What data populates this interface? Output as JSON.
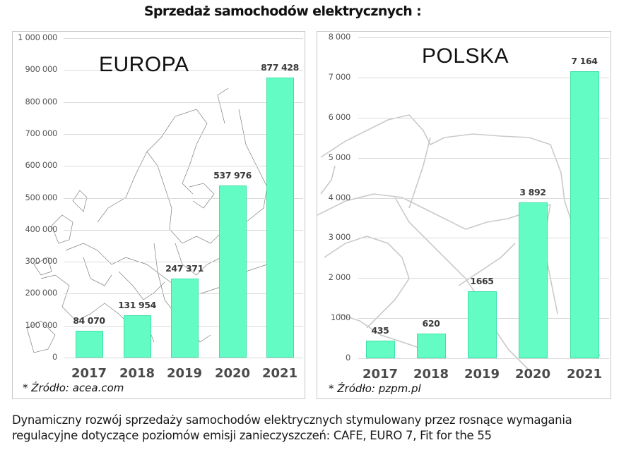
{
  "title": "Sprzedaż samochodów elektrycznych :",
  "caption": "Dynamiczny rozwój sprzedaży samochodów elektrycznych stymulowany przez rosnące wymagania regulacyjne dotyczące poziomów emisji zanieczyszczeń: CAFE, EURO 7, Fit for the 55",
  "colors": {
    "bar": "#62fcc4",
    "bar_border": "#3fe0a8",
    "grid": "#d9d9d9",
    "text": "#1a1a1a"
  },
  "europa": {
    "region_title": "EUROPA",
    "source": "* Źródło: acea.com",
    "y_ticks": [
      "0",
      "100 000",
      "200 000",
      "300 000",
      "400 000",
      "500 000",
      "600 000",
      "700 000",
      "800 000",
      "900 000",
      "1 000 000"
    ],
    "bars": [
      {
        "year": "2017",
        "label": "84 070"
      },
      {
        "year": "2018",
        "label": "131 954"
      },
      {
        "year": "2019",
        "label": "247 371"
      },
      {
        "year": "2020",
        "label": "537 976"
      },
      {
        "year": "2021",
        "label": "877 428"
      }
    ]
  },
  "polska": {
    "region_title": "POLSKA",
    "source": "* Źródło: pzpm.pl",
    "y_ticks": [
      "0",
      "1000",
      "2 000",
      "3 000",
      "4 000",
      "5 000",
      "6 000",
      "7 000",
      "8 000"
    ],
    "bars": [
      {
        "year": "2017",
        "label": "435"
      },
      {
        "year": "2018",
        "label": "620"
      },
      {
        "year": "2019",
        "label": "1665"
      },
      {
        "year": "2020",
        "label": "3 892"
      },
      {
        "year": "2021",
        "label": "7 164"
      }
    ]
  },
  "chart_data": [
    {
      "type": "bar",
      "title": "EUROPA",
      "subtitle": "Sprzedaż samochodów elektrycznych",
      "categories": [
        "2017",
        "2018",
        "2019",
        "2020",
        "2021"
      ],
      "values": [
        84070,
        131954,
        247371,
        537976,
        877428
      ],
      "xlabel": "",
      "ylabel": "",
      "ylim": [
        0,
        1000000
      ],
      "yticks": [
        0,
        100000,
        200000,
        300000,
        400000,
        500000,
        600000,
        700000,
        800000,
        900000,
        1000000
      ],
      "grid": true,
      "legend": "none",
      "annotations": [
        "* Źródło: acea.com"
      ],
      "background": "map of Europe"
    },
    {
      "type": "bar",
      "title": "POLSKA",
      "subtitle": "Sprzedaż samochodów elektrycznych",
      "categories": [
        "2017",
        "2018",
        "2019",
        "2020",
        "2021"
      ],
      "values": [
        435,
        620,
        1665,
        3892,
        7164
      ],
      "xlabel": "",
      "ylabel": "",
      "ylim": [
        0,
        8000
      ],
      "yticks": [
        0,
        1000,
        2000,
        3000,
        4000,
        5000,
        6000,
        7000,
        8000
      ],
      "grid": true,
      "legend": "none",
      "annotations": [
        "* Źródło: pzpm.pl"
      ],
      "background": "map of Poland"
    }
  ]
}
